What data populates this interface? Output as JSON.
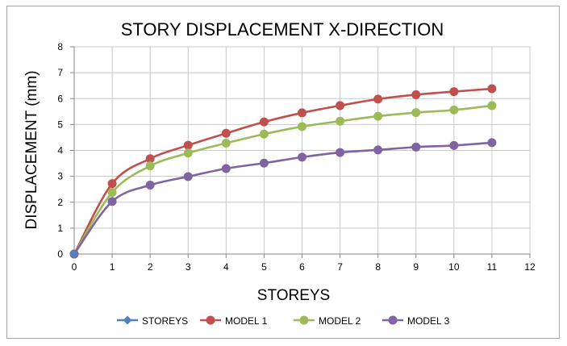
{
  "chart_data": {
    "type": "line",
    "title": "STORY DISPLACEMENT X-DIRECTION",
    "xlabel": "STOREYS",
    "ylabel": "DISPLACEMENT (mm)",
    "xlim": [
      0,
      12
    ],
    "ylim": [
      0,
      8
    ],
    "xticks": [
      "0",
      "1",
      "2",
      "3",
      "4",
      "5",
      "6",
      "7",
      "8",
      "9",
      "10",
      "11",
      "12"
    ],
    "yticks": [
      "0",
      "1",
      "2",
      "3",
      "4",
      "5",
      "6",
      "7",
      "8"
    ],
    "grid": true,
    "legend_position": "bottom",
    "x": [
      0,
      1,
      2,
      3,
      4,
      5,
      6,
      7,
      8,
      9,
      10,
      11
    ],
    "series": [
      {
        "name": "STOREYS",
        "color": "#4f81bd",
        "marker": "diamond",
        "values": [
          0,
          null,
          null,
          null,
          null,
          null,
          null,
          null,
          null,
          null,
          null,
          null
        ]
      },
      {
        "name": "MODEL 1",
        "color": "#c0504d",
        "marker": "circle",
        "values": [
          0,
          2.72,
          3.68,
          4.2,
          4.66,
          5.1,
          5.45,
          5.73,
          5.98,
          6.15,
          6.27,
          6.38
        ]
      },
      {
        "name": "MODEL 2",
        "color": "#9bbb59",
        "marker": "circle",
        "values": [
          0,
          2.38,
          3.4,
          3.9,
          4.28,
          4.63,
          4.92,
          5.13,
          5.32,
          5.46,
          5.56,
          5.73
        ]
      },
      {
        "name": "MODEL 3",
        "color": "#8064a2",
        "marker": "circle",
        "values": [
          0,
          2.03,
          2.66,
          2.99,
          3.3,
          3.51,
          3.74,
          3.92,
          4.02,
          4.13,
          4.19,
          4.3
        ]
      }
    ]
  }
}
